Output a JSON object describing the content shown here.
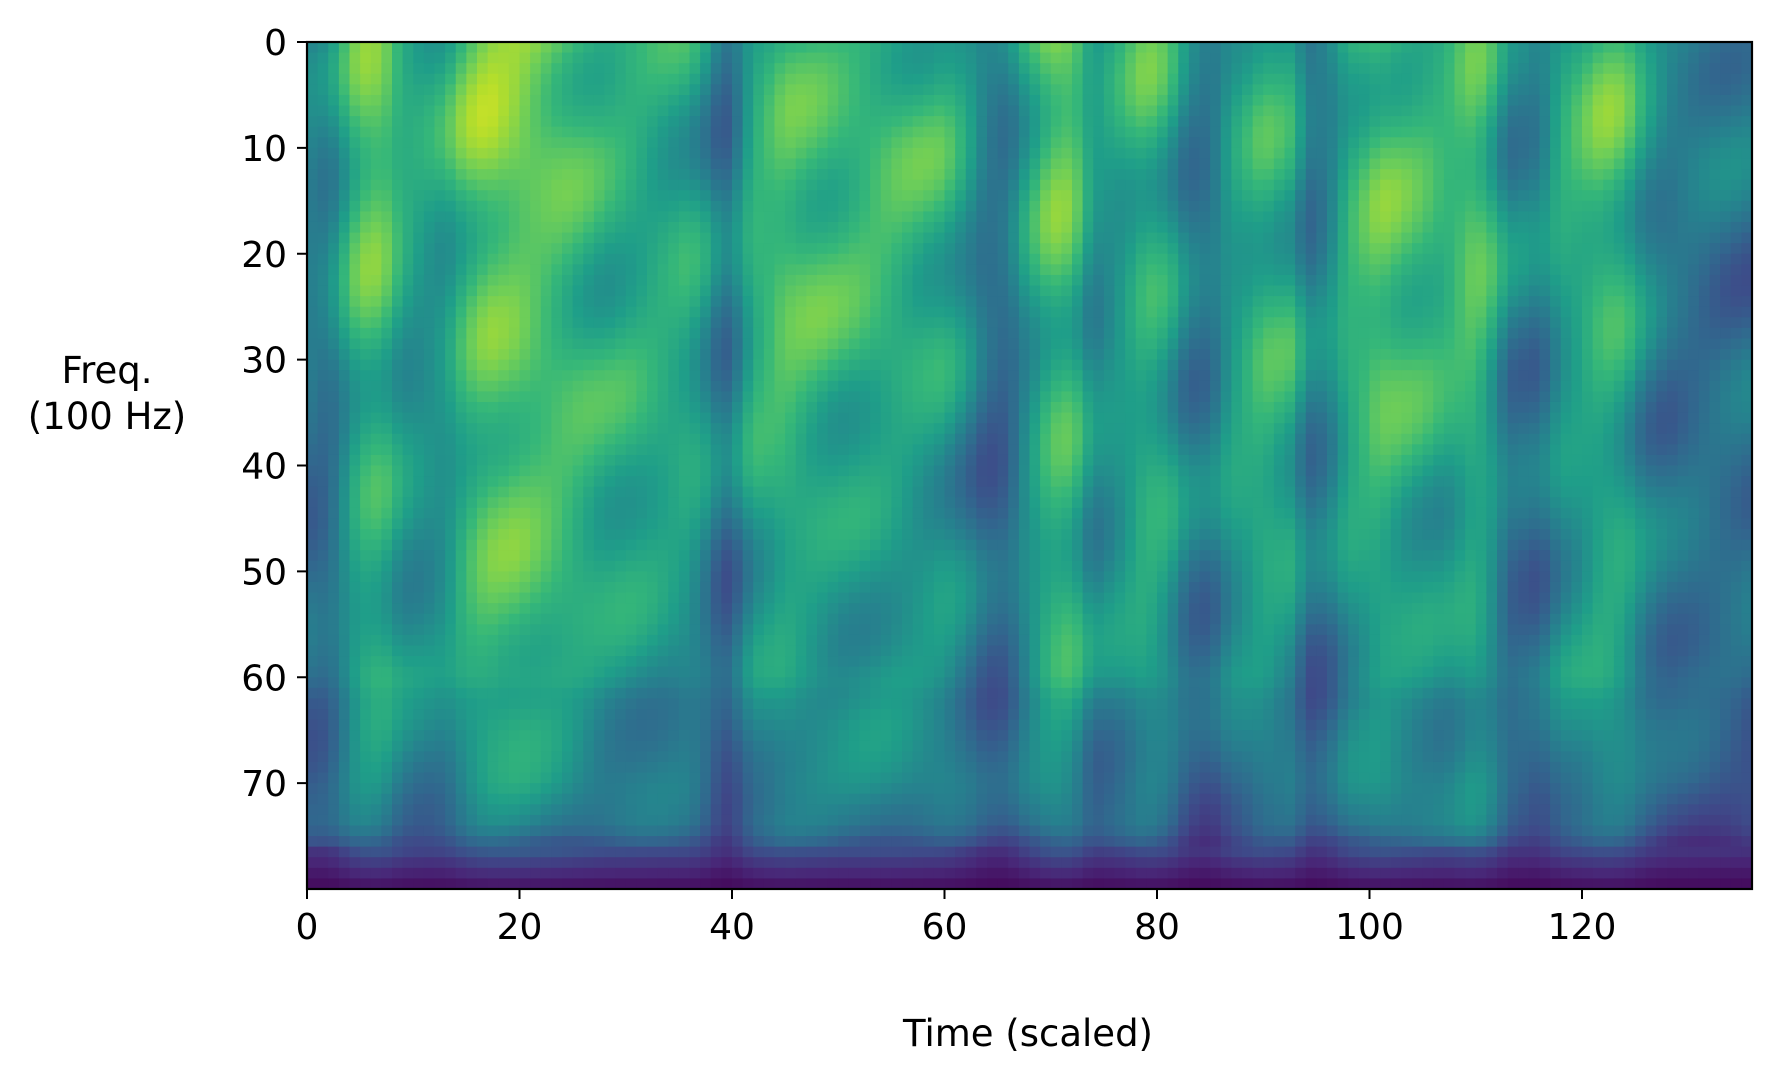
{
  "chart_data": {
    "type": "heatmap",
    "title": "",
    "xlabel": "Time (scaled)",
    "ylabel_lines": [
      "Freq.",
      "(100 Hz)"
    ],
    "colormap": "viridis",
    "colorbar": false,
    "grid": false,
    "legend": "none",
    "xlim": [
      0,
      136
    ],
    "ylim": [
      80,
      0
    ],
    "x_ticks": [
      0,
      20,
      40,
      60,
      80,
      100,
      120
    ],
    "x_tick_labels": [
      "0",
      "20",
      "40",
      "60",
      "80",
      "100",
      "120"
    ],
    "y_ticks": [
      0,
      10,
      20,
      30,
      40,
      50,
      60,
      70
    ],
    "y_tick_labels": [
      "0",
      "10",
      "20",
      "30",
      "40",
      "50",
      "60",
      "70"
    ],
    "n_time_bins": 136,
    "n_freq_bins": 80,
    "value_range": [
      0,
      1
    ],
    "intensity_note": "normalized energy per time bin, 0 = dark purple (low), 1 = yellow (high)",
    "time_profile": [
      [
        0,
        0.42
      ],
      [
        2,
        0.42
      ],
      [
        3,
        0.52
      ],
      [
        5,
        0.72
      ],
      [
        7,
        0.74
      ],
      [
        9,
        0.6
      ],
      [
        11,
        0.56
      ],
      [
        13,
        0.58
      ],
      [
        15,
        0.72
      ],
      [
        17,
        0.8
      ],
      [
        20,
        0.8
      ],
      [
        24,
        0.74
      ],
      [
        28,
        0.66
      ],
      [
        32,
        0.64
      ],
      [
        36,
        0.62
      ],
      [
        38,
        0.5
      ],
      [
        39,
        0.38
      ],
      [
        40,
        0.42
      ],
      [
        42,
        0.64
      ],
      [
        45,
        0.72
      ],
      [
        50,
        0.66
      ],
      [
        55,
        0.66
      ],
      [
        60,
        0.62
      ],
      [
        62,
        0.52
      ],
      [
        64,
        0.38
      ],
      [
        66,
        0.38
      ],
      [
        67,
        0.5
      ],
      [
        70,
        0.74
      ],
      [
        72,
        0.74
      ],
      [
        74,
        0.52
      ],
      [
        76,
        0.56
      ],
      [
        79,
        0.68
      ],
      [
        81,
        0.62
      ],
      [
        83,
        0.44
      ],
      [
        85,
        0.42
      ],
      [
        87,
        0.58
      ],
      [
        90,
        0.68
      ],
      [
        93,
        0.62
      ],
      [
        94,
        0.42
      ],
      [
        96,
        0.46
      ],
      [
        98,
        0.64
      ],
      [
        101,
        0.74
      ],
      [
        104,
        0.68
      ],
      [
        107,
        0.64
      ],
      [
        110,
        0.72
      ],
      [
        112,
        0.58
      ],
      [
        113,
        0.44
      ],
      [
        116,
        0.42
      ],
      [
        118,
        0.58
      ],
      [
        122,
        0.7
      ],
      [
        124,
        0.66
      ],
      [
        126,
        0.5
      ],
      [
        128,
        0.42
      ],
      [
        136,
        0.4
      ]
    ],
    "freq_profile": [
      [
        0,
        1.0
      ],
      [
        10,
        1.0
      ],
      [
        20,
        0.97
      ],
      [
        30,
        0.95
      ],
      [
        40,
        0.9
      ],
      [
        50,
        0.86
      ],
      [
        60,
        0.82
      ],
      [
        62,
        0.74
      ],
      [
        70,
        0.7
      ],
      [
        74,
        0.6
      ],
      [
        76,
        0.4
      ],
      [
        78,
        0.2
      ],
      [
        80,
        0.05
      ]
    ]
  }
}
